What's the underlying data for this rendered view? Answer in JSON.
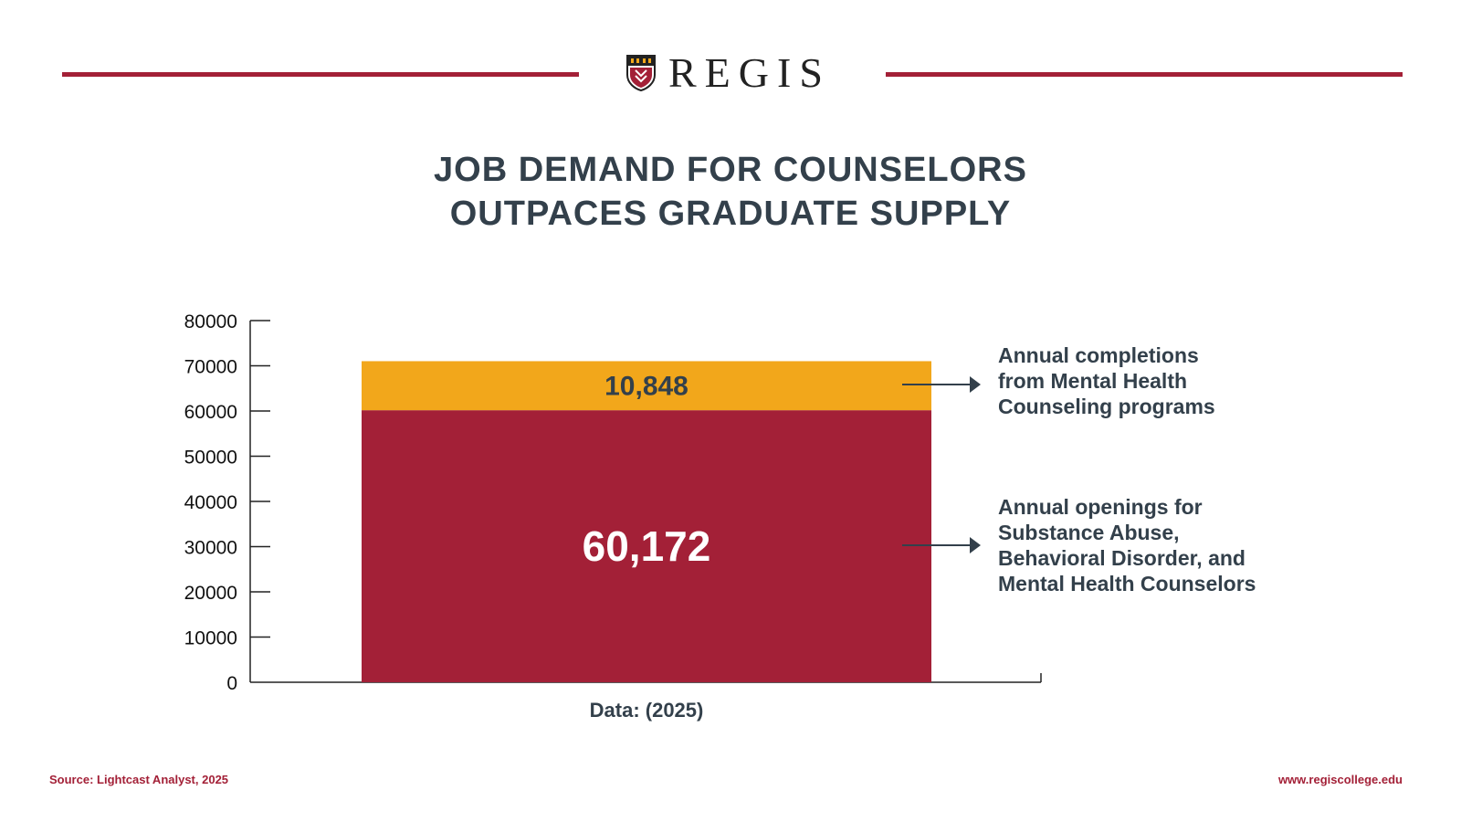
{
  "brand": {
    "name": "REGIS",
    "colors": {
      "accent": "#a32037",
      "gold": "#f2a71b",
      "text": "#33404b"
    },
    "logo_icon": "regis-shield-icon"
  },
  "title": {
    "line1": "JOB DEMAND FOR COUNSELORS",
    "line2": "OUTPACES GRADUATE SUPPLY"
  },
  "chart_data": {
    "type": "bar",
    "stacked": true,
    "categories": [
      "Data: (2025)"
    ],
    "series": [
      {
        "name": "Annual openings for Substance Abuse, Behavioral Disorder, and Mental Health Counselors",
        "name_lines": [
          "Annual openings for",
          "Substance Abuse,",
          "Behavioral Disorder, and",
          "Mental Health Counselors"
        ],
        "values": [
          60172
        ],
        "label": "60,172",
        "color": "#a32037",
        "label_color": "#ffffff"
      },
      {
        "name": "Annual completions from Mental Health Counseling programs",
        "name_lines": [
          "Annual completions",
          "from Mental Health",
          "Counseling programs"
        ],
        "values": [
          10848
        ],
        "label": "10,848",
        "color": "#f2a71b",
        "label_color": "#33404b"
      }
    ],
    "ylim": [
      0,
      80000
    ],
    "yticks": [
      "0",
      "10000",
      "20000",
      "30000",
      "40000",
      "50000",
      "60000",
      "70000",
      "80000"
    ],
    "xlabel": "Data: (2025)",
    "ylabel": "",
    "grid": false,
    "legend": "right, arrow annotations"
  },
  "footer": {
    "source": "Source: Lightcast Analyst, 2025",
    "url": "www.regiscollege.edu"
  }
}
